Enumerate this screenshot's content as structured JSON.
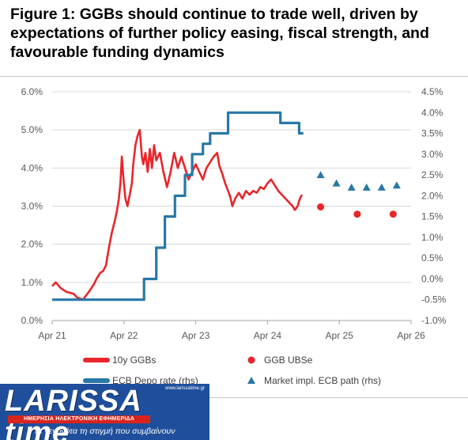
{
  "title_lines": [
    "Figure 1: GGBs should continue to trade well, driven by",
    "expectations of further policy easing, fiscal strength, and",
    "favourable funding dynamics"
  ],
  "colors": {
    "ggb_line": "#e8262b",
    "ecb_line": "#2878a6",
    "ubse_dot": "#e8262b",
    "market_tri": "#2878a6",
    "axis_text": "#595959",
    "grid": "#d9d9d9"
  },
  "chart_data": {
    "type": "line",
    "x_axis": {
      "ticks": [
        "Apr 21",
        "Apr 22",
        "Apr 23",
        "Apr 24",
        "Apr 25",
        "Apr 26"
      ],
      "range": [
        "Apr 21",
        "Apr 26"
      ]
    },
    "y_left": {
      "ticks": [
        "0.0%",
        "1.0%",
        "2.0%",
        "3.0%",
        "4.0%",
        "5.0%",
        "6.0%"
      ],
      "ylim": [
        0,
        6
      ]
    },
    "y_right": {
      "ticks": [
        "-1.0%",
        "-0.5%",
        "0.0%",
        "0.5%",
        "1.0%",
        "1.5%",
        "2.0%",
        "2.5%",
        "3.0%",
        "3.5%",
        "4.0%",
        "4.5%"
      ],
      "ylim": [
        -1,
        4.5
      ]
    },
    "series": [
      {
        "name": "10y GGBs",
        "axis": "left",
        "style": "line",
        "points": [
          [
            2021.25,
            0.9
          ],
          [
            2021.3,
            1.0
          ],
          [
            2021.37,
            0.85
          ],
          [
            2021.45,
            0.75
          ],
          [
            2021.55,
            0.7
          ],
          [
            2021.6,
            0.6
          ],
          [
            2021.68,
            0.55
          ],
          [
            2021.72,
            0.65
          ],
          [
            2021.78,
            0.8
          ],
          [
            2021.83,
            0.95
          ],
          [
            2021.87,
            1.1
          ],
          [
            2021.92,
            1.25
          ],
          [
            2021.96,
            1.3
          ],
          [
            2022.0,
            1.45
          ],
          [
            2022.04,
            1.9
          ],
          [
            2022.08,
            2.3
          ],
          [
            2022.12,
            2.6
          ],
          [
            2022.15,
            2.85
          ],
          [
            2022.18,
            3.2
          ],
          [
            2022.2,
            3.6
          ],
          [
            2022.22,
            4.3
          ],
          [
            2022.24,
            3.8
          ],
          [
            2022.27,
            3.2
          ],
          [
            2022.3,
            3.0
          ],
          [
            2022.33,
            3.3
          ],
          [
            2022.36,
            3.6
          ],
          [
            2022.38,
            4.1
          ],
          [
            2022.41,
            4.6
          ],
          [
            2022.44,
            4.85
          ],
          [
            2022.47,
            5.0
          ],
          [
            2022.5,
            4.3
          ],
          [
            2022.52,
            4.1
          ],
          [
            2022.55,
            4.4
          ],
          [
            2022.58,
            3.9
          ],
          [
            2022.61,
            4.5
          ],
          [
            2022.64,
            4.0
          ],
          [
            2022.67,
            4.6
          ],
          [
            2022.7,
            4.2
          ],
          [
            2022.75,
            4.4
          ],
          [
            2022.8,
            3.9
          ],
          [
            2022.85,
            3.5
          ],
          [
            2022.9,
            3.9
          ],
          [
            2022.95,
            4.4
          ],
          [
            2023.0,
            4.0
          ],
          [
            2023.05,
            4.3
          ],
          [
            2023.1,
            4.0
          ],
          [
            2023.15,
            3.7
          ],
          [
            2023.2,
            3.9
          ],
          [
            2023.25,
            4.1
          ],
          [
            2023.3,
            3.9
          ],
          [
            2023.35,
            3.7
          ],
          [
            2023.4,
            4.0
          ],
          [
            2023.45,
            4.15
          ],
          [
            2023.5,
            4.3
          ],
          [
            2023.55,
            4.4
          ],
          [
            2023.58,
            4.05
          ],
          [
            2023.62,
            3.85
          ],
          [
            2023.66,
            3.6
          ],
          [
            2023.7,
            3.4
          ],
          [
            2023.73,
            3.25
          ],
          [
            2023.76,
            3.0
          ],
          [
            2023.8,
            3.2
          ],
          [
            2023.85,
            3.35
          ],
          [
            2023.9,
            3.2
          ],
          [
            2023.95,
            3.4
          ],
          [
            2024.0,
            3.3
          ],
          [
            2024.05,
            3.4
          ],
          [
            2024.1,
            3.35
          ],
          [
            2024.15,
            3.5
          ],
          [
            2024.2,
            3.45
          ],
          [
            2024.25,
            3.6
          ],
          [
            2024.3,
            3.7
          ],
          [
            2024.35,
            3.55
          ],
          [
            2024.4,
            3.4
          ],
          [
            2024.45,
            3.3
          ],
          [
            2024.5,
            3.2
          ],
          [
            2024.55,
            3.1
          ],
          [
            2024.6,
            3.0
          ],
          [
            2024.63,
            2.9
          ],
          [
            2024.67,
            3.0
          ],
          [
            2024.7,
            3.2
          ],
          [
            2024.73,
            3.3
          ]
        ]
      },
      {
        "name": "ECB Depo rate (rhs)",
        "axis": "right",
        "style": "step",
        "points": [
          [
            2021.25,
            -0.5
          ],
          [
            2022.53,
            -0.5
          ],
          [
            2022.53,
            0.0
          ],
          [
            2022.7,
            0.0
          ],
          [
            2022.7,
            0.75
          ],
          [
            2022.82,
            0.75
          ],
          [
            2022.82,
            1.5
          ],
          [
            2022.96,
            1.5
          ],
          [
            2022.96,
            2.0
          ],
          [
            2023.1,
            2.0
          ],
          [
            2023.1,
            2.5
          ],
          [
            2023.2,
            2.5
          ],
          [
            2023.2,
            3.0
          ],
          [
            2023.35,
            3.0
          ],
          [
            2023.35,
            3.25
          ],
          [
            2023.45,
            3.25
          ],
          [
            2023.45,
            3.5
          ],
          [
            2023.7,
            3.5
          ],
          [
            2023.7,
            4.0
          ],
          [
            2024.43,
            4.0
          ],
          [
            2024.43,
            3.75
          ],
          [
            2024.69,
            3.75
          ],
          [
            2024.69,
            3.5
          ],
          [
            2024.75,
            3.5
          ]
        ]
      },
      {
        "name": "GGB UBSe",
        "axis": "left",
        "style": "markers-circle",
        "points": [
          [
            2024.99,
            2.98
          ],
          [
            2025.5,
            2.79
          ],
          [
            2026.0,
            2.79
          ]
        ]
      },
      {
        "name": "Market impl. ECB path (rhs)",
        "axis": "right",
        "style": "markers-triangle",
        "points": [
          [
            2024.99,
            2.5
          ],
          [
            2025.21,
            2.3
          ],
          [
            2025.42,
            2.2
          ],
          [
            2025.63,
            2.2
          ],
          [
            2025.84,
            2.2
          ],
          [
            2026.05,
            2.25
          ]
        ]
      }
    ],
    "legend": [
      {
        "label": "10y GGBs",
        "kind": "line",
        "color_key": "ggb_line"
      },
      {
        "label": "GGB UBSe",
        "kind": "circle",
        "color_key": "ubse_dot"
      },
      {
        "label": "ECB Depo rate (rhs)",
        "kind": "line",
        "color_key": "ecb_line"
      },
      {
        "label": "Market impl. ECB path (rhs)",
        "kind": "triangle",
        "color_key": "market_tri"
      }
    ],
    "grid": "horizontal"
  },
  "logo": {
    "name": "LARISSA time",
    "url": "www.larissatime.gr",
    "subtitle": "ΗΜΕΡΗΣΙΑ ΗΛΕΚΤΡΟΝΙΚΗ ΕΦΗΜΕΡΙΔΑ",
    "tagline": "τα γεγονότα τη στιγμή που συμβαίνουν"
  }
}
